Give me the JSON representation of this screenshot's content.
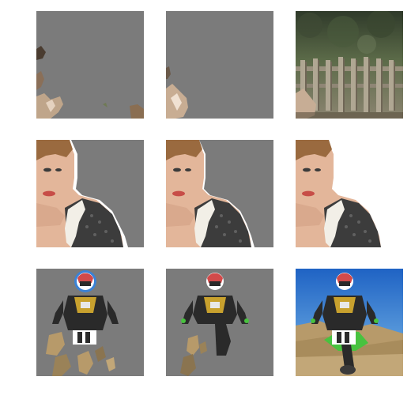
{
  "figure": {
    "colors": {
      "mask_gray": "#7b7b7b",
      "white": "#ffffff",
      "forest_dark": "#3e4a34",
      "forest_mid": "#6b7a5a",
      "fence": "#8f8675",
      "skin": "#e3b69a",
      "hair": "#9a6a3f",
      "lips": "#c74d47",
      "sweater_dark": "#3c3c3c",
      "sweater_light": "#f2efe7",
      "sky": "#3b82d6",
      "sky_light": "#7ab9e8",
      "sand": "#b79a6a",
      "jacket": "#2a2a2a",
      "accent_yellow": "#c8a12e",
      "bike_green": "#48c23f",
      "helmet_red": "#d24a4a"
    },
    "rows": [
      {
        "id": "row-fence",
        "panels": [
          "masked-a",
          "masked-b",
          "original"
        ]
      },
      {
        "id": "row-portrait",
        "panels": [
          "masked-a",
          "masked-b",
          "original"
        ]
      },
      {
        "id": "row-motocross",
        "panels": [
          "masked-a",
          "masked-b",
          "original"
        ]
      }
    ]
  }
}
